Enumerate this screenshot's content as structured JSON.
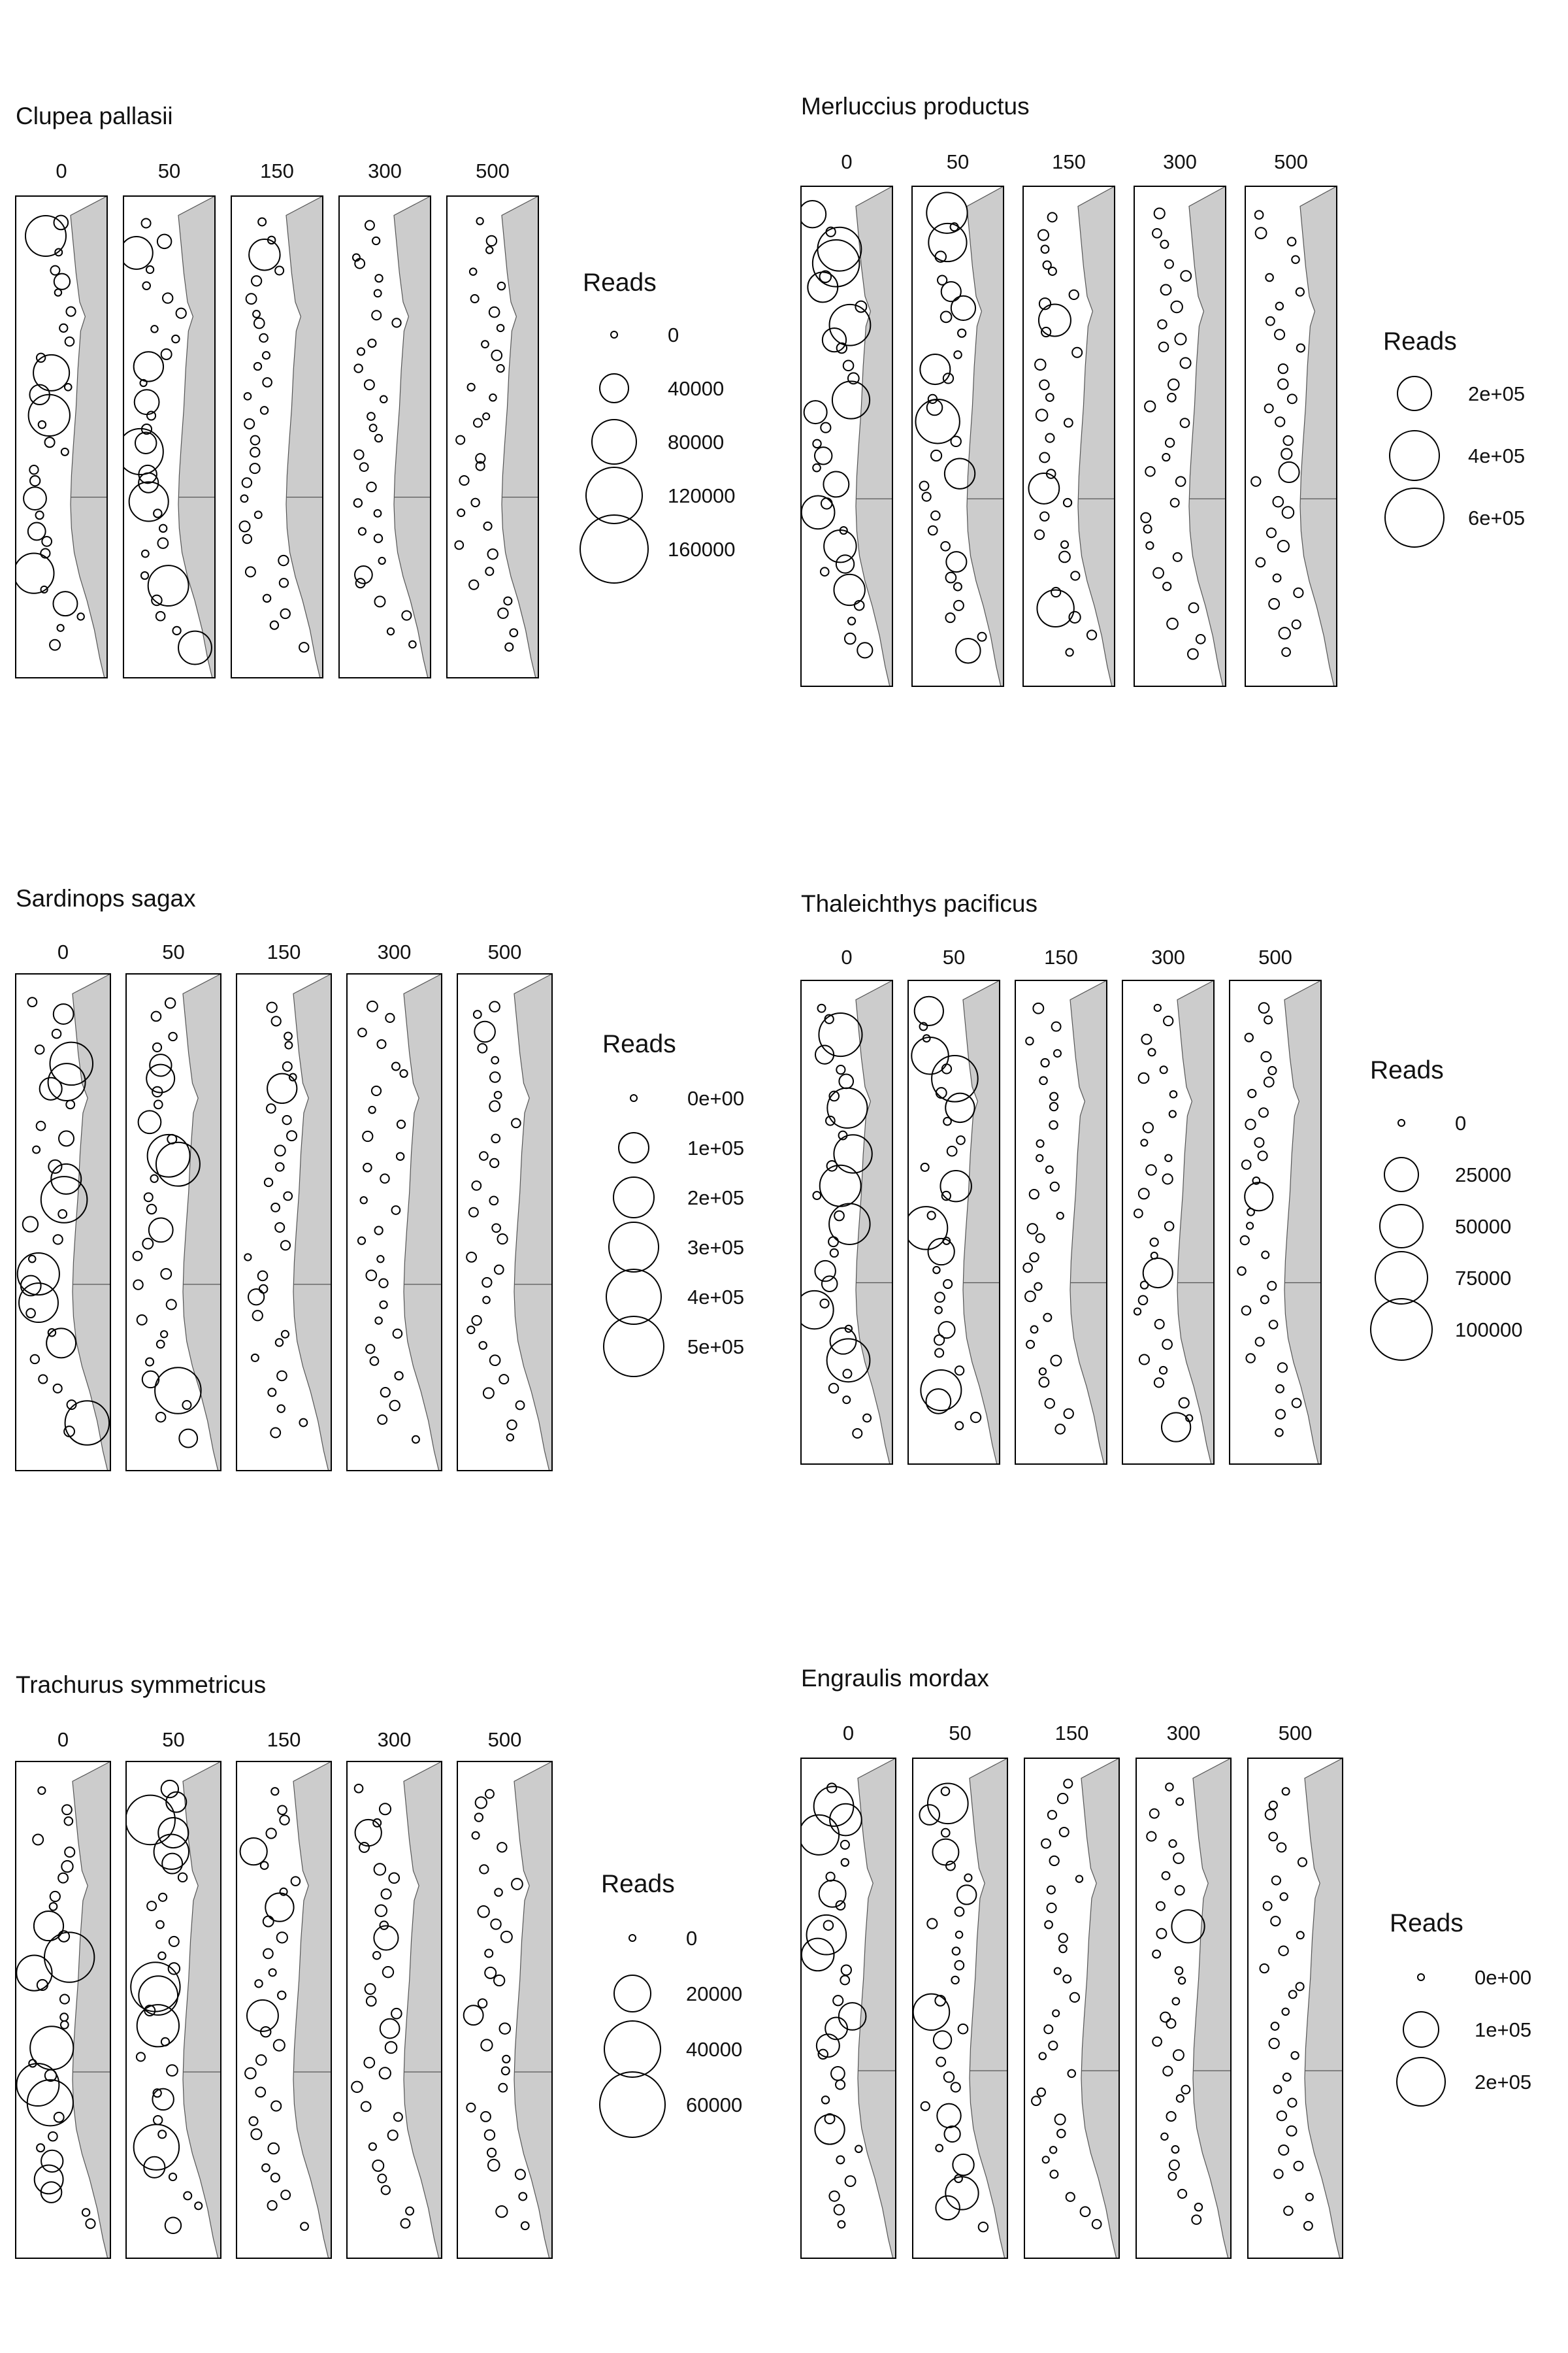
{
  "figure": {
    "panels": [
      {
        "title": "Clupea pallasii",
        "depth_labels": [
          "0",
          "50",
          "150",
          "300",
          "500"
        ],
        "legend": {
          "title": "Reads",
          "entries": [
            {
              "label": "0",
              "value": 0
            },
            {
              "label": "40000",
              "value": 40000
            },
            {
              "label": "80000",
              "value": 80000
            },
            {
              "label": "120000",
              "value": 120000
            },
            {
              "label": "160000",
              "value": 160000
            }
          ]
        }
      },
      {
        "title": "Merluccius productus",
        "depth_labels": [
          "0",
          "50",
          "150",
          "300",
          "500"
        ],
        "legend": {
          "title": "Reads",
          "entries": [
            {
              "label": "2e+05",
              "value": 200000
            },
            {
              "label": "4e+05",
              "value": 400000
            },
            {
              "label": "6e+05",
              "value": 600000
            }
          ]
        }
      },
      {
        "title": "Sardinops sagax",
        "depth_labels": [
          "0",
          "50",
          "150",
          "300",
          "500"
        ],
        "legend": {
          "title": "Reads",
          "entries": [
            {
              "label": "0e+00",
              "value": 0
            },
            {
              "label": "1e+05",
              "value": 100000
            },
            {
              "label": "2e+05",
              "value": 200000
            },
            {
              "label": "3e+05",
              "value": 300000
            },
            {
              "label": "4e+05",
              "value": 400000
            },
            {
              "label": "5e+05",
              "value": 500000
            }
          ]
        }
      },
      {
        "title": "Thaleichthys pacificus",
        "depth_labels": [
          "0",
          "50",
          "150",
          "300",
          "500"
        ],
        "legend": {
          "title": "Reads",
          "entries": [
            {
              "label": "0",
              "value": 0
            },
            {
              "label": "25000",
              "value": 25000
            },
            {
              "label": "50000",
              "value": 50000
            },
            {
              "label": "75000",
              "value": 75000
            },
            {
              "label": "100000",
              "value": 100000
            }
          ]
        }
      },
      {
        "title": "Trachurus symmetricus",
        "depth_labels": [
          "0",
          "50",
          "150",
          "300",
          "500"
        ],
        "legend": {
          "title": "Reads",
          "entries": [
            {
              "label": "0",
              "value": 0
            },
            {
              "label": "20000",
              "value": 20000
            },
            {
              "label": "40000",
              "value": 40000
            },
            {
              "label": "60000",
              "value": 60000
            }
          ]
        }
      },
      {
        "title": "Engraulis mordax",
        "depth_labels": [
          "0",
          "50",
          "150",
          "300",
          "500"
        ],
        "legend": {
          "title": "Reads",
          "entries": [
            {
              "label": "0e+00",
              "value": 0
            },
            {
              "label": "1e+05",
              "value": 100000
            },
            {
              "label": "2e+05",
              "value": 200000
            }
          ]
        }
      }
    ]
  },
  "chart_data": [
    {
      "type": "scatter",
      "title": "Clupea pallasii",
      "facets": [
        "0",
        "50",
        "150",
        "300",
        "500"
      ],
      "size_variable": "Reads",
      "size_breaks": [
        0,
        40000,
        80000,
        120000,
        160000
      ],
      "colors": {
        "stroke": "#000000",
        "land": "#cccccc"
      }
    },
    {
      "type": "scatter",
      "title": "Merluccius productus",
      "facets": [
        "0",
        "50",
        "150",
        "300",
        "500"
      ],
      "size_variable": "Reads",
      "size_breaks": [
        200000,
        400000,
        600000
      ],
      "colors": {
        "stroke": "#000000",
        "land": "#cccccc"
      }
    },
    {
      "type": "scatter",
      "title": "Sardinops sagax",
      "facets": [
        "0",
        "50",
        "150",
        "300",
        "500"
      ],
      "size_variable": "Reads",
      "size_breaks": [
        0,
        100000,
        200000,
        300000,
        400000,
        500000
      ],
      "colors": {
        "stroke": "#000000",
        "land": "#cccccc"
      }
    },
    {
      "type": "scatter",
      "title": "Thaleichthys pacificus",
      "facets": [
        "0",
        "50",
        "150",
        "300",
        "500"
      ],
      "size_variable": "Reads",
      "size_breaks": [
        0,
        25000,
        50000,
        75000,
        100000
      ],
      "colors": {
        "stroke": "#000000",
        "land": "#cccccc"
      }
    },
    {
      "type": "scatter",
      "title": "Trachurus symmetricus",
      "facets": [
        "0",
        "50",
        "150",
        "300",
        "500"
      ],
      "size_variable": "Reads",
      "size_breaks": [
        0,
        20000,
        40000,
        60000
      ],
      "colors": {
        "stroke": "#000000",
        "land": "#cccccc"
      }
    },
    {
      "type": "scatter",
      "title": "Engraulis mordax",
      "facets": [
        "0",
        "50",
        "150",
        "300",
        "500"
      ],
      "size_variable": "Reads",
      "size_breaks": [
        0,
        100000,
        200000
      ],
      "colors": {
        "stroke": "#000000",
        "land": "#cccccc"
      }
    }
  ]
}
